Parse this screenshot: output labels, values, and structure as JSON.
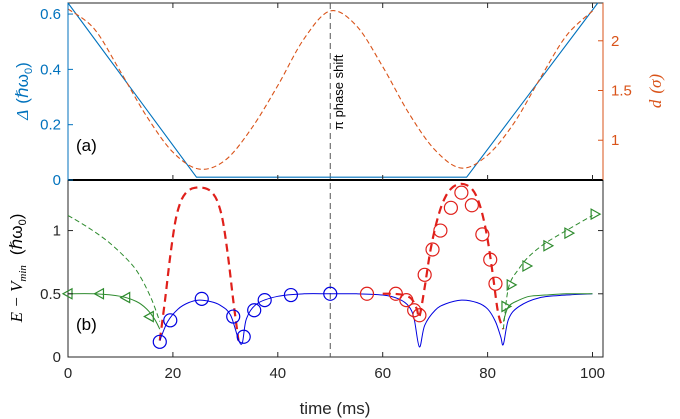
{
  "chart_data": [
    {
      "type": "line",
      "panel": "(a)",
      "x_range": [
        0,
        102
      ],
      "xticks": [
        0,
        20,
        40,
        60,
        80,
        100
      ],
      "left_axis": {
        "label": "Δ (ℏω₀)",
        "color": "#0072BD",
        "ylim": [
          0,
          0.64
        ],
        "ticks": [
          0,
          0.2,
          0.4,
          0.6
        ],
        "tick_labels": [
          "0",
          "0.2",
          "0.4",
          "0.6"
        ]
      },
      "right_axis": {
        "label": "d (σ)",
        "color": "#D95319",
        "ylim": [
          0.6,
          2.38
        ],
        "ticks": [
          1,
          1.5,
          2
        ],
        "tick_labels": [
          "1",
          "1.5",
          "2"
        ]
      },
      "series": [
        {
          "name": "Δ",
          "axis": "left",
          "color": "#0072BD",
          "style": "solid",
          "x": [
            0,
            24.5,
            76,
            101
          ],
          "y": [
            0.64,
            0.01,
            0.01,
            0.64
          ]
        },
        {
          "name": "d",
          "axis": "right",
          "color": "#D95319",
          "style": "dashed",
          "x": [
            0,
            5,
            10,
            15,
            20,
            25,
            30,
            35,
            40,
            45,
            50,
            55,
            60,
            65,
            70,
            75,
            80,
            85,
            90,
            95,
            100
          ],
          "y": [
            2.32,
            2.12,
            1.69,
            1.24,
            0.88,
            0.71,
            0.8,
            1.12,
            1.55,
            2.02,
            2.3,
            2.15,
            1.74,
            1.27,
            0.9,
            0.72,
            0.85,
            1.17,
            1.62,
            2.05,
            2.3
          ]
        }
      ],
      "annotation": {
        "text": "π phase shift",
        "x": 50
      }
    },
    {
      "type": "line",
      "panel": "(b)",
      "xlabel": "time (ms)",
      "ylabel": "E − V_min  (ℏω₀)",
      "xlim": [
        0,
        102
      ],
      "ylim": [
        0,
        1.4
      ],
      "xticks": [
        0,
        20,
        40,
        60,
        80,
        100
      ],
      "xtick_labels": [
        "0",
        "20",
        "40",
        "60",
        "80",
        "100"
      ],
      "yticks": [
        0,
        0.5,
        1
      ],
      "ytick_labels": [
        "0",
        "0.5",
        "1"
      ],
      "series": [
        {
          "name": "green-dash",
          "color": "#2E8B2E",
          "style": "dashed",
          "x": [
            0,
            4,
            8,
            12,
            14,
            16,
            17.5
          ],
          "y": [
            1.12,
            1.02,
            0.9,
            0.74,
            0.62,
            0.45,
            0.28
          ]
        },
        {
          "name": "green-solid-left",
          "color": "#2E8B2E",
          "style": "solid",
          "x": [
            0,
            5,
            10,
            13,
            15,
            16.5,
            17.5
          ],
          "y": [
            0.5,
            0.5,
            0.48,
            0.44,
            0.38,
            0.3,
            0.22
          ]
        },
        {
          "name": "red-dash-left",
          "color": "#E0201B",
          "style": "dashed",
          "x": [
            17.5,
            18.5,
            19.5,
            20.5,
            21.5,
            22.5,
            23.5,
            24.5,
            25.5,
            26.5,
            27.5,
            28.5,
            29.5,
            30.5,
            31.5,
            32.5
          ],
          "y": [
            0.13,
            0.45,
            0.8,
            1.08,
            1.23,
            1.3,
            1.33,
            1.34,
            1.34,
            1.33,
            1.3,
            1.23,
            1.08,
            0.8,
            0.45,
            0.13
          ]
        },
        {
          "name": "blue-solid",
          "color": "#0000E0",
          "style": "solid",
          "x": [
            17.5,
            19,
            21,
            23,
            25,
            27,
            29,
            31,
            33,
            34,
            36,
            40,
            45,
            50,
            55,
            60,
            63,
            65,
            66,
            67,
            68,
            70,
            72,
            75,
            78,
            80,
            81.5,
            82.5,
            83,
            84,
            86,
            90,
            95,
            100
          ],
          "y": [
            0.13,
            0.28,
            0.38,
            0.43,
            0.45,
            0.44,
            0.41,
            0.33,
            0.1,
            0.3,
            0.42,
            0.48,
            0.5,
            0.5,
            0.5,
            0.49,
            0.46,
            0.4,
            0.3,
            0.08,
            0.25,
            0.37,
            0.42,
            0.45,
            0.43,
            0.38,
            0.28,
            0.16,
            0.1,
            0.3,
            0.4,
            0.47,
            0.49,
            0.5
          ]
        },
        {
          "name": "red-dash-right",
          "color": "#E0201B",
          "style": "dashed",
          "x": [
            60,
            62,
            64,
            65.5,
            66.5,
            67,
            68,
            69,
            70,
            71,
            72,
            73,
            74,
            75,
            76,
            77,
            78,
            79,
            80,
            81,
            82,
            83
          ],
          "y": [
            0.5,
            0.5,
            0.49,
            0.46,
            0.38,
            0.32,
            0.55,
            0.82,
            1.02,
            1.17,
            1.27,
            1.33,
            1.36,
            1.37,
            1.36,
            1.33,
            1.26,
            1.13,
            0.93,
            0.65,
            0.35,
            0.22
          ]
        },
        {
          "name": "green-dash-right",
          "color": "#2E8B2E",
          "style": "dashed",
          "x": [
            83,
            84,
            86,
            88,
            91,
            95,
            100
          ],
          "y": [
            0.22,
            0.55,
            0.7,
            0.8,
            0.9,
            1.0,
            1.12
          ]
        },
        {
          "name": "green-solid-right",
          "color": "#2E8B2E",
          "style": "solid",
          "x": [
            83,
            84,
            86,
            88,
            91,
            95,
            100
          ],
          "y": [
            0.28,
            0.4,
            0.45,
            0.48,
            0.49,
            0.5,
            0.5
          ]
        }
      ],
      "markers": [
        {
          "name": "green-left-triangles",
          "shape": "triangle-left",
          "color": "#2E8B2E",
          "x": [
            0,
            6,
            11,
            15.5
          ],
          "y": [
            0.5,
            0.5,
            0.47,
            0.32
          ]
        },
        {
          "name": "blue-circles",
          "shape": "circle",
          "color": "#0000E0",
          "x": [
            17.5,
            19.5,
            25.5,
            31.5,
            33.5,
            35.5,
            37.5,
            42.5,
            50
          ],
          "y": [
            0.12,
            0.29,
            0.46,
            0.32,
            0.16,
            0.37,
            0.45,
            0.49,
            0.5
          ]
        },
        {
          "name": "red-circles",
          "shape": "circle",
          "color": "#E0201B",
          "x": [
            57,
            62.5,
            64.5,
            66,
            67,
            68,
            69.5,
            71,
            73,
            75,
            77,
            79,
            80.5,
            81.5
          ],
          "y": [
            0.5,
            0.5,
            0.45,
            0.37,
            0.33,
            0.65,
            0.85,
            1.0,
            1.18,
            1.3,
            1.2,
            0.97,
            0.77,
            0.58
          ]
        },
        {
          "name": "green-right-triangles",
          "shape": "triangle-right",
          "color": "#2E8B2E",
          "x": [
            83.5,
            84.5,
            87.5,
            91.5,
            95.5,
            100.5
          ],
          "y": [
            0.4,
            0.57,
            0.72,
            0.88,
            0.98,
            1.13
          ]
        }
      ],
      "annotation": {
        "text": "",
        "x": 50
      }
    }
  ],
  "panel_a_label": "(a)",
  "panel_b_label": "(b)",
  "annotation_text": "π phase shift",
  "xlabel": "time (ms)",
  "ylabel_a_sym": "Δ",
  "ylabel_a_unit": "(ℏω",
  "ylabel_a_sub": "0",
  "ylabel_a_close": ")",
  "ylabel_a_right_sym": "d",
  "ylabel_a_right_unit": "(σ)",
  "ylabel_b_sym": "E − V",
  "ylabel_b_sub": "min",
  "ylabel_b_unit": "(ℏω",
  "ylabel_b_sub2": "0",
  "ylabel_b_close": ")"
}
